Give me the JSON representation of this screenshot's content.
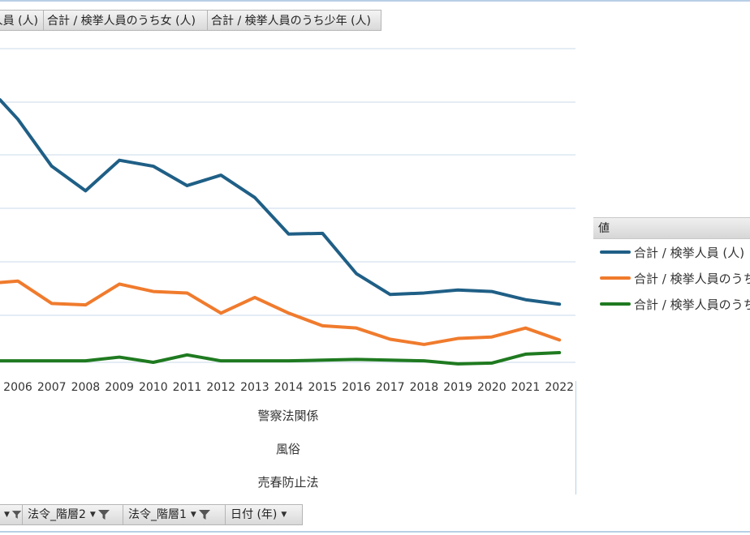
{
  "value_buttons": [
    "合計 / 検挙人員 (人)",
    "合計 / 検挙人員のうち女 (人)",
    "合計 / 検挙人員のうち少年 (人)"
  ],
  "axis_fields": [
    "警察法関係",
    "風俗",
    "売春防止法"
  ],
  "legend": {
    "header": "値",
    "items": [
      {
        "label": "合計 / 検挙人員 (人)",
        "color": "#1f5f86"
      },
      {
        "label": "合計 / 検挙人員のうち女 (人)",
        "color": "#f07b2d"
      },
      {
        "label": "合計 / 検挙人員のうち少年 (人)",
        "color": "#1f7a20"
      }
    ]
  },
  "filter_bar": {
    "items": [
      {
        "label": "",
        "has_funnel": true
      },
      {
        "label": "法令_階層2",
        "has_funnel": true
      },
      {
        "label": "法令_階層1",
        "has_funnel": true
      },
      {
        "label": "日付 (年)",
        "has_funnel": false
      }
    ]
  },
  "chart_data": {
    "type": "line",
    "categories": [
      "2006",
      "2007",
      "2008",
      "2009",
      "2010",
      "2011",
      "2012",
      "2013",
      "2014",
      "2015",
      "2016",
      "2017",
      "2018",
      "2019",
      "2020",
      "2021",
      "2022"
    ],
    "grid": "horizontal",
    "series": [
      {
        "name": "合計 / 検挙人員 (人)",
        "color": "#1f5f86",
        "values": [
          3.26,
          2.63,
          2.3,
          2.71,
          2.63,
          2.37,
          2.51,
          2.21,
          1.72,
          1.73,
          1.19,
          0.91,
          0.93,
          0.97,
          0.95,
          0.84,
          0.78
        ],
        "lead_in": 3.52
      },
      {
        "name": "合計 / 検挙人員のうち女 (人)",
        "color": "#f07b2d",
        "values": [
          1.09,
          0.79,
          0.77,
          1.05,
          0.95,
          0.93,
          0.66,
          0.87,
          0.66,
          0.49,
          0.46,
          0.31,
          0.24,
          0.32,
          0.34,
          0.46,
          0.3
        ],
        "lead_in": 1.07
      },
      {
        "name": "合計 / 検挙人員のうち少年 (人)",
        "color": "#1f7a20",
        "values": [
          0.02,
          0.02,
          0.02,
          0.07,
          0.0,
          0.1,
          0.02,
          0.02,
          0.02,
          0.03,
          0.04,
          0.03,
          0.02,
          -0.02,
          -0.01,
          0.11,
          0.13
        ],
        "lead_in": 0.02
      }
    ]
  }
}
